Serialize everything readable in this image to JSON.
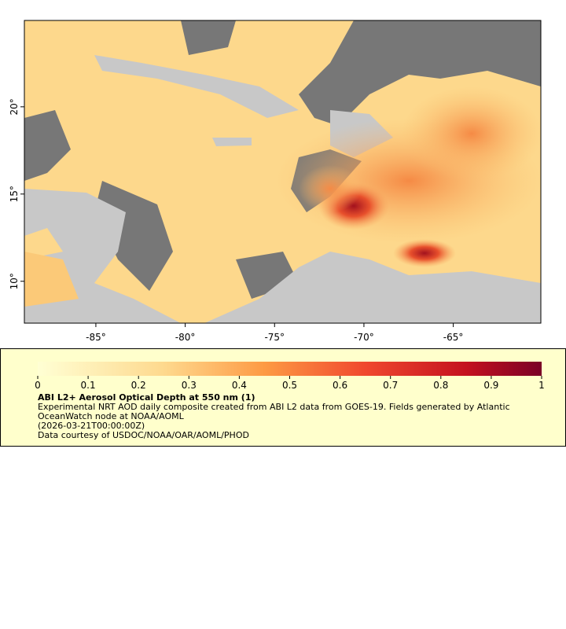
{
  "map": {
    "xlim": [
      -89,
      -60.1
    ],
    "ylim": [
      7.6,
      24.95
    ],
    "xticks": [
      {
        "value": -85,
        "label": "-85°"
      },
      {
        "value": -80,
        "label": "-80°"
      },
      {
        "value": -75,
        "label": "-75°"
      },
      {
        "value": -70,
        "label": "-70°"
      },
      {
        "value": -65,
        "label": "-65°"
      }
    ],
    "yticks": [
      {
        "value": 10,
        "label": "10°"
      },
      {
        "value": 15,
        "label": "15°"
      },
      {
        "value": 20,
        "label": "20°"
      }
    ]
  },
  "legend": {
    "range": [
      0,
      1
    ],
    "ticks": [
      0,
      0.1,
      0.2,
      0.3,
      0.4,
      0.5,
      0.6,
      0.7,
      0.8,
      0.9,
      1
    ]
  },
  "caption": {
    "title": "ABI L2+ Aerosol Optical Depth at 550 nm (1)",
    "lines": [
      "Experimental NRT AOD daily composite created from ABI L2 data from GOES-19. Fields generated by Atlantic OceanWatch node at NOAA/AOML",
      "(2026-03-21T00:00:00Z)",
      "Data courtesy of USDOC/NOAA/OAR/AOML/PHOD"
    ]
  }
}
